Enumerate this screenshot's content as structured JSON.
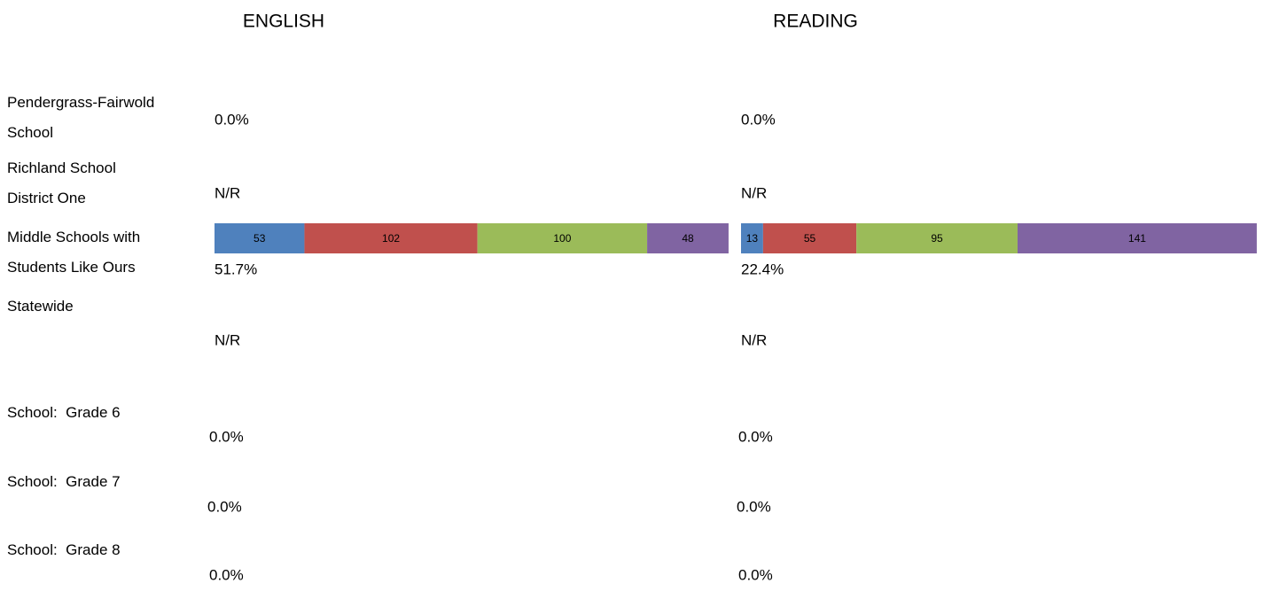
{
  "chart_data": [
    {
      "type": "bar",
      "title": "ENGLISH",
      "categories": [
        "Pendergrass-Fairwold School",
        "Richland School District One",
        "Middle Schools with Students Like Ours",
        "Statewide",
        "School:  Grade 6",
        "School:  Grade 7",
        "School:  Grade 8"
      ],
      "series": [
        {
          "color": "#4f81bd",
          "values": [
            null,
            null,
            53,
            null,
            null,
            null,
            null
          ]
        },
        {
          "color": "#c0504d",
          "values": [
            null,
            null,
            102,
            null,
            null,
            null,
            null
          ]
        },
        {
          "color": "#9bbb59",
          "values": [
            null,
            null,
            100,
            null,
            null,
            null,
            null
          ]
        },
        {
          "color": "#8064a2",
          "values": [
            null,
            null,
            48,
            null,
            null,
            null,
            null
          ]
        }
      ],
      "annotations": [
        "0.0%",
        "N/R",
        "51.7%",
        "N/R",
        "0.0%",
        "0.0%",
        "0.0%"
      ]
    },
    {
      "type": "bar",
      "title": "READING",
      "series": [
        {
          "color": "#4f81bd",
          "values": [
            null,
            null,
            13,
            null,
            null,
            null,
            null
          ]
        },
        {
          "color": "#c0504d",
          "values": [
            null,
            null,
            55,
            null,
            null,
            null,
            null
          ]
        },
        {
          "color": "#9bbb59",
          "values": [
            null,
            null,
            95,
            null,
            null,
            null,
            null
          ]
        },
        {
          "color": "#8064a2",
          "values": [
            null,
            null,
            141,
            null,
            null,
            null,
            null
          ]
        }
      ],
      "annotations": [
        "0.0%",
        "N/R",
        "22.4%",
        "N/R",
        "0.0%",
        "0.0%",
        "0.0%"
      ]
    }
  ]
}
